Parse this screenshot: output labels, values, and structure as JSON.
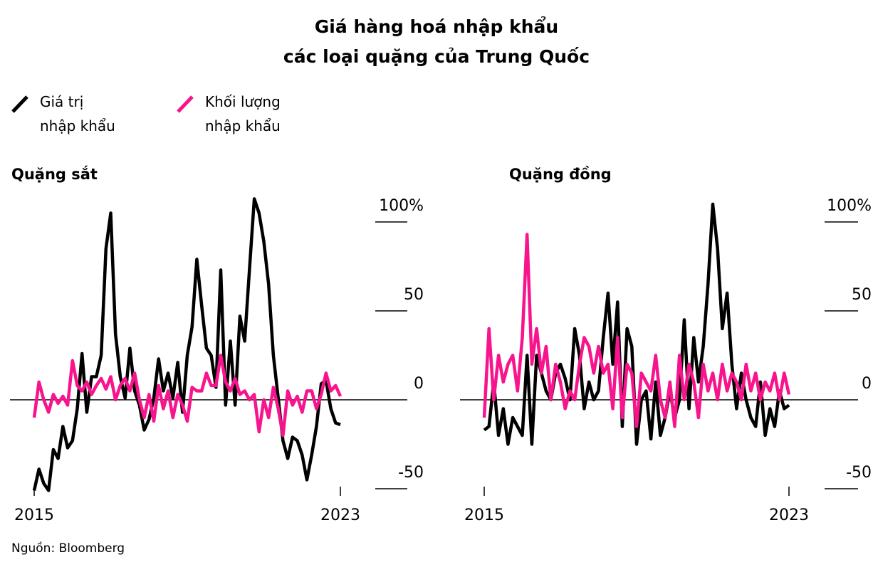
{
  "title": [
    "Giá hàng hoá nhập khẩu",
    "các loại quặng của Trung Quốc"
  ],
  "source": "Nguồn: Bloomberg",
  "chart_data": [
    {
      "type": "line",
      "title": "Quặng sắt",
      "x": [
        2015,
        2015.125,
        2015.25,
        2015.375,
        2015.5,
        2015.625,
        2015.75,
        2015.875,
        2016,
        2016.125,
        2016.25,
        2016.375,
        2016.5,
        2016.625,
        2016.75,
        2016.875,
        2017,
        2017.125,
        2017.25,
        2017.375,
        2017.5,
        2017.625,
        2017.75,
        2017.875,
        2018,
        2018.125,
        2018.25,
        2018.375,
        2018.5,
        2018.625,
        2018.75,
        2018.875,
        2019,
        2019.125,
        2019.25,
        2019.375,
        2019.5,
        2019.625,
        2019.75,
        2019.875,
        2020,
        2020.125,
        2020.25,
        2020.375,
        2020.5,
        2020.625,
        2020.75,
        2020.875,
        2021,
        2021.125,
        2021.25,
        2021.375,
        2021.5,
        2021.625,
        2021.75,
        2021.875,
        2022,
        2022.125,
        2022.25,
        2022.375,
        2022.5,
        2022.625,
        2022.75,
        2022.875,
        2023
      ],
      "xlim": [
        2015,
        2023
      ],
      "xticks": [
        2015,
        2023
      ],
      "ylim": [
        -55,
        115
      ],
      "yticks": [
        {
          "value": 100,
          "label": "100%"
        },
        50,
        0,
        -50
      ],
      "series": [
        {
          "name": "Giá trị nhập khẩu",
          "color": "#000000",
          "values": [
            -51,
            -39,
            -47,
            -51,
            -28,
            -33,
            -15,
            -27,
            -23,
            -5,
            26,
            -7,
            13,
            13,
            25,
            85,
            105,
            37,
            13,
            1,
            29,
            5,
            -3,
            -17,
            -11,
            1,
            23,
            5,
            15,
            1,
            21,
            -7,
            25,
            41,
            79,
            53,
            29,
            25,
            7,
            73,
            -3,
            33,
            -3,
            47,
            33,
            73,
            113,
            105,
            89,
            65,
            25,
            1,
            -23,
            -33,
            -21,
            -23,
            -31,
            -45,
            -31,
            -15,
            9,
            11,
            -5,
            -13,
            -14
          ]
        },
        {
          "name": "Khối lượng nhập khẩu",
          "color": "#f7148c",
          "values": [
            -10,
            10,
            0,
            -7,
            3,
            -2,
            2,
            -3,
            22,
            8,
            5,
            10,
            3,
            8,
            12,
            6,
            13,
            0,
            8,
            12,
            5,
            15,
            0,
            -10,
            3,
            -12,
            8,
            -5,
            5,
            -10,
            3,
            -3,
            -12,
            7,
            5,
            5,
            15,
            8,
            8,
            25,
            10,
            5,
            12,
            3,
            5,
            0,
            3,
            -18,
            0,
            -10,
            7,
            -5,
            -20,
            5,
            -3,
            2,
            -7,
            5,
            5,
            -5,
            3,
            15,
            5,
            8,
            2
          ]
        }
      ]
    },
    {
      "type": "line",
      "title": "Quặng đồng",
      "x": [
        2015,
        2015.125,
        2015.25,
        2015.375,
        2015.5,
        2015.625,
        2015.75,
        2015.875,
        2016,
        2016.125,
        2016.25,
        2016.375,
        2016.5,
        2016.625,
        2016.75,
        2016.875,
        2017,
        2017.125,
        2017.25,
        2017.375,
        2017.5,
        2017.625,
        2017.75,
        2017.875,
        2018,
        2018.125,
        2018.25,
        2018.375,
        2018.5,
        2018.625,
        2018.75,
        2018.875,
        2019,
        2019.125,
        2019.25,
        2019.375,
        2019.5,
        2019.625,
        2019.75,
        2019.875,
        2020,
        2020.125,
        2020.25,
        2020.375,
        2020.5,
        2020.625,
        2020.75,
        2020.875,
        2021,
        2021.125,
        2021.25,
        2021.375,
        2021.5,
        2021.625,
        2021.75,
        2021.875,
        2022,
        2022.125,
        2022.25,
        2022.375,
        2022.5,
        2022.625,
        2022.75,
        2022.875,
        2023
      ],
      "xlim": [
        2015,
        2023
      ],
      "xticks": [
        2015,
        2023
      ],
      "ylim": [
        -55,
        115
      ],
      "yticks": [
        {
          "value": 100,
          "label": "100%"
        },
        50,
        0,
        -50
      ],
      "series": [
        {
          "name": "Giá trị nhập khẩu",
          "color": "#000000",
          "values": [
            -17,
            -15,
            10,
            -20,
            -5,
            -25,
            -10,
            -15,
            -20,
            25,
            -25,
            25,
            15,
            5,
            0,
            15,
            20,
            12,
            0,
            40,
            25,
            -5,
            10,
            0,
            5,
            35,
            60,
            20,
            55,
            -15,
            40,
            30,
            -25,
            0,
            5,
            -22,
            10,
            -20,
            -10,
            5,
            -10,
            0,
            45,
            -5,
            35,
            10,
            30,
            65,
            110,
            85,
            40,
            60,
            20,
            -5,
            15,
            0,
            -10,
            -15,
            10,
            -20,
            -5,
            -15,
            5,
            -5,
            -3
          ]
        },
        {
          "name": "Khối lượng nhập khẩu",
          "color": "#f7148c",
          "values": [
            -10,
            40,
            0,
            25,
            10,
            20,
            25,
            5,
            35,
            93,
            20,
            40,
            15,
            30,
            0,
            20,
            10,
            -5,
            5,
            0,
            20,
            35,
            30,
            15,
            30,
            15,
            20,
            -5,
            35,
            -10,
            20,
            15,
            -15,
            15,
            10,
            5,
            25,
            0,
            -10,
            10,
            -15,
            25,
            0,
            20,
            10,
            -10,
            20,
            5,
            15,
            0,
            20,
            5,
            15,
            10,
            0,
            20,
            5,
            15,
            0,
            10,
            5,
            15,
            0,
            15,
            3
          ]
        }
      ]
    }
  ]
}
